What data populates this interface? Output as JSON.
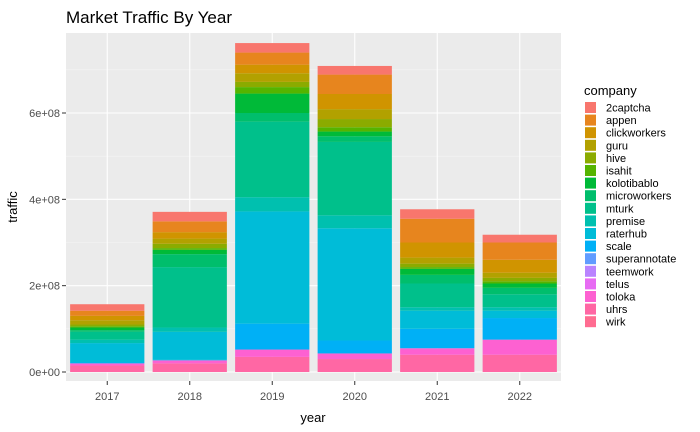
{
  "chart_data": {
    "type": "bar",
    "stacked": true,
    "title": "Market Traffic By Year",
    "xlabel": "year",
    "ylabel": "traffic",
    "categories": [
      "2017",
      "2018",
      "2019",
      "2020",
      "2021",
      "2022"
    ],
    "ylim": [
      0,
      800000000
    ],
    "yticks": [
      0,
      200000000,
      400000000,
      600000000
    ],
    "ytick_labels": [
      "0e+00",
      "2e+08",
      "4e+08",
      "6e+08"
    ],
    "grid": true,
    "legend": {
      "title": "company",
      "placement": "right"
    },
    "series": [
      {
        "name": "2captcha",
        "color": "#F8766D",
        "values": [
          15000000,
          22000000,
          22000000,
          20000000,
          22000000,
          18000000
        ]
      },
      {
        "name": "appen",
        "color": "#E7851E",
        "values": [
          12000000,
          25000000,
          28000000,
          45000000,
          55000000,
          40000000
        ]
      },
      {
        "name": "clickworkers",
        "color": "#D09400",
        "values": [
          10000000,
          15000000,
          20000000,
          35000000,
          35000000,
          30000000
        ]
      },
      {
        "name": "guru",
        "color": "#B2A100",
        "values": [
          10000000,
          12000000,
          20000000,
          23000000,
          14000000,
          12000000
        ]
      },
      {
        "name": "hive",
        "color": "#8BAB00",
        "values": [
          4000000,
          10000000,
          12000000,
          19000000,
          8000000,
          8000000
        ]
      },
      {
        "name": "isahit",
        "color": "#55B400",
        "values": [
          3000000,
          4000000,
          15000000,
          10000000,
          4000000,
          5000000
        ]
      },
      {
        "name": "kolotibablo",
        "color": "#00BA38",
        "values": [
          6000000,
          10000000,
          45000000,
          11000000,
          14000000,
          10000000
        ]
      },
      {
        "name": "microworkers",
        "color": "#00BE6C",
        "values": [
          4000000,
          30000000,
          20000000,
          13000000,
          20000000,
          15000000
        ]
      },
      {
        "name": "mturk",
        "color": "#00C08B",
        "values": [
          18000000,
          140000000,
          175000000,
          170000000,
          55000000,
          30000000
        ]
      },
      {
        "name": "premise",
        "color": "#00C0AF",
        "values": [
          8000000,
          10000000,
          33000000,
          30000000,
          8000000,
          8000000
        ]
      },
      {
        "name": "raterhub",
        "color": "#00BCD8",
        "values": [
          45000000,
          65000000,
          260000000,
          260000000,
          42000000,
          17000000
        ]
      },
      {
        "name": "scale",
        "color": "#00B0F6",
        "values": [
          2000000,
          1000000,
          60000000,
          30000000,
          45000000,
          50000000
        ]
      },
      {
        "name": "superannotate",
        "color": "#619CFF",
        "values": [
          0,
          0,
          0,
          0,
          0,
          0
        ]
      },
      {
        "name": "teemwork",
        "color": "#B983FF",
        "values": [
          0,
          0,
          0,
          0,
          0,
          0
        ]
      },
      {
        "name": "telus",
        "color": "#E76BF3",
        "values": [
          0,
          0,
          0,
          0,
          0,
          0
        ]
      },
      {
        "name": "toloka",
        "color": "#FD61D1",
        "values": [
          5000000,
          7000000,
          17000000,
          13000000,
          15000000,
          35000000
        ]
      },
      {
        "name": "uhrs",
        "color": "#FF67A4",
        "values": [
          15000000,
          20000000,
          35000000,
          30000000,
          40000000,
          40000000
        ]
      },
      {
        "name": "wirk",
        "color": "#FF6C91",
        "values": [
          0,
          0,
          0,
          0,
          0,
          0
        ]
      }
    ]
  }
}
